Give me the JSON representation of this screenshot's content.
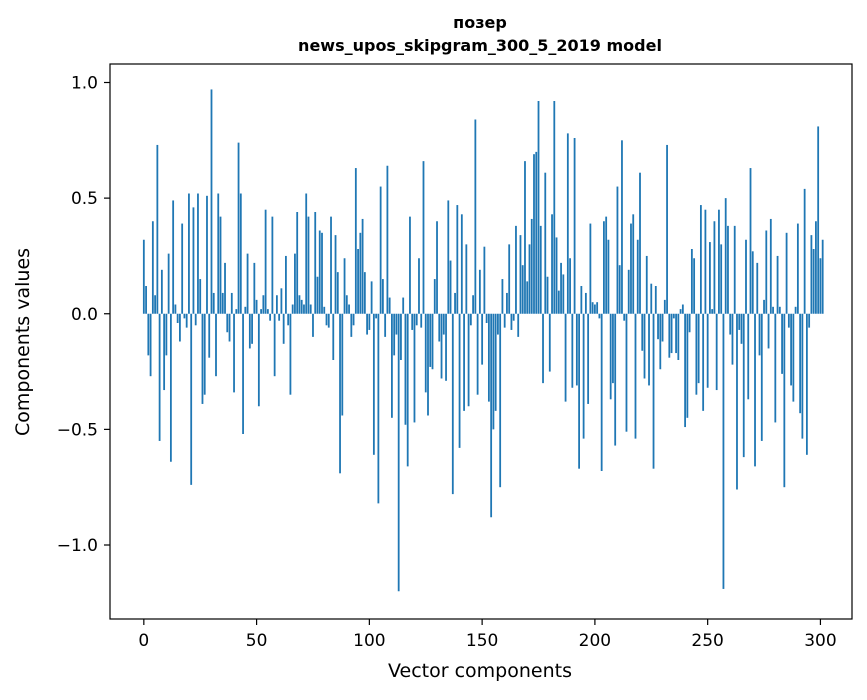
{
  "chart_data": {
    "type": "bar",
    "title": "позер",
    "subtitle": "news_upos_skipgram_300_5_2019 model",
    "xlabel": "Vector components",
    "ylabel": "Components values",
    "xlim": [
      -15,
      314
    ],
    "ylim": [
      -1.32,
      1.08
    ],
    "xticks": [
      0,
      50,
      100,
      150,
      200,
      250,
      300
    ],
    "yticks": [
      1.0,
      0.5,
      0.0,
      -0.5,
      -1.0
    ],
    "ytick_labels": [
      "1.0",
      "0.5",
      "0.0",
      "−0.5",
      "−1.0"
    ],
    "bar_color": "#1f77b4",
    "values": [
      0.32,
      0.12,
      -0.18,
      -0.27,
      0.4,
      0.08,
      0.73,
      -0.55,
      0.19,
      -0.33,
      -0.18,
      0.26,
      -0.64,
      0.49,
      0.04,
      -0.04,
      -0.12,
      0.39,
      -0.02,
      -0.06,
      0.52,
      -0.74,
      0.46,
      -0.05,
      0.52,
      0.15,
      -0.39,
      -0.35,
      0.51,
      -0.19,
      0.97,
      0.09,
      -0.27,
      0.52,
      0.42,
      0.09,
      0.22,
      -0.08,
      -0.12,
      0.09,
      -0.34,
      0.02,
      0.74,
      0.52,
      -0.52,
      0.03,
      0.26,
      -0.15,
      -0.13,
      0.22,
      0.06,
      -0.4,
      0.02,
      0.08,
      0.45,
      0.02,
      -0.03,
      0.42,
      -0.27,
      0.08,
      -0.03,
      0.11,
      -0.13,
      0.25,
      -0.05,
      -0.35,
      0.04,
      0.26,
      0.44,
      0.08,
      0.06,
      0.04,
      0.52,
      0.42,
      0.04,
      -0.1,
      0.44,
      0.16,
      0.36,
      0.35,
      0.03,
      -0.05,
      -0.06,
      0.42,
      -0.2,
      0.34,
      0.18,
      -0.69,
      -0.44,
      0.24,
      0.08,
      0.04,
      -0.1,
      -0.05,
      0.63,
      0.28,
      0.35,
      0.41,
      0.18,
      -0.09,
      -0.07,
      0.14,
      -0.61,
      -0.02,
      -0.82,
      0.55,
      0.15,
      -0.1,
      0.64,
      0.07,
      -0.45,
      -0.18,
      -0.09,
      -1.2,
      -0.2,
      0.07,
      -0.48,
      -0.66,
      0.42,
      -0.07,
      -0.47,
      -0.05,
      0.24,
      -0.06,
      0.66,
      -0.34,
      -0.44,
      -0.23,
      -0.24,
      0.15,
      0.4,
      -0.12,
      -0.28,
      -0.09,
      -0.29,
      0.49,
      0.23,
      -0.78,
      0.09,
      0.47,
      -0.58,
      0.43,
      -0.42,
      0.3,
      -0.4,
      -0.05,
      0.08,
      0.84,
      -0.35,
      0.19,
      -0.22,
      0.29,
      -0.04,
      -0.38,
      -0.88,
      -0.5,
      -0.42,
      -0.09,
      -0.75,
      0.15,
      -0.06,
      0.09,
      0.3,
      -0.07,
      -0.03,
      0.38,
      -0.1,
      0.34,
      0.21,
      0.66,
      0.14,
      0.3,
      0.41,
      0.69,
      0.7,
      0.92,
      0.38,
      -0.3,
      0.61,
      0.16,
      -0.25,
      0.43,
      0.92,
      0.33,
      0.1,
      0.22,
      0.17,
      -0.38,
      0.78,
      0.24,
      -0.32,
      0.76,
      -0.31,
      -0.67,
      0.12,
      -0.54,
      0.09,
      -0.39,
      0.39,
      0.05,
      0.04,
      0.05,
      -0.02,
      -0.68,
      0.4,
      0.42,
      0.32,
      -0.37,
      -0.3,
      -0.57,
      0.55,
      0.21,
      0.75,
      -0.03,
      -0.51,
      0.19,
      0.39,
      0.43,
      -0.54,
      0.32,
      0.61,
      -0.16,
      -0.28,
      0.25,
      -0.31,
      0.13,
      -0.67,
      0.12,
      -0.11,
      -0.24,
      -0.12,
      0.06,
      0.73,
      -0.19,
      -0.17,
      -0.02,
      -0.17,
      -0.2,
      0.02,
      0.04,
      -0.49,
      -0.45,
      -0.08,
      0.28,
      0.24,
      -0.35,
      -0.3,
      0.47,
      -0.42,
      0.45,
      -0.32,
      0.31,
      0.02,
      0.4,
      -0.33,
      0.45,
      0.3,
      -1.19,
      0.5,
      0.38,
      -0.09,
      -0.22,
      0.38,
      -0.76,
      -0.07,
      -0.13,
      -0.62,
      0.32,
      -0.37,
      0.63,
      0.27,
      -0.66,
      0.22,
      -0.18,
      -0.55,
      0.06,
      0.36,
      -0.15,
      0.41,
      0.03,
      -0.47,
      0.25,
      0.03,
      -0.26,
      -0.75,
      0.35,
      -0.06,
      -0.31,
      -0.38,
      0.03,
      0.39,
      -0.43,
      -0.54,
      0.54,
      -0.61,
      -0.06,
      0.34,
      0.28,
      0.4,
      0.81,
      0.24,
      0.32
    ]
  }
}
